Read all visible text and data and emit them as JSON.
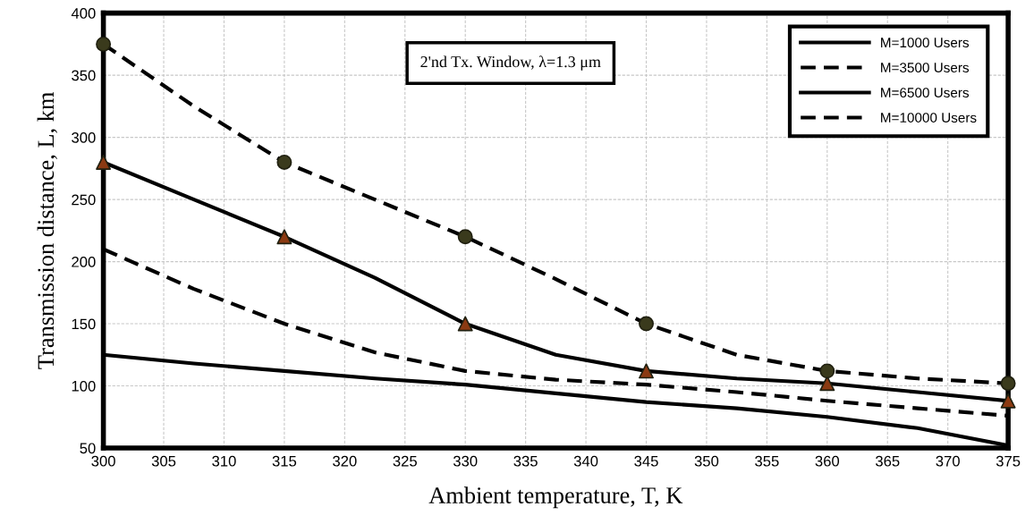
{
  "chart_data": {
    "type": "line",
    "xlabel": "Ambient temperature, T, K",
    "ylabel": "Transmission distance, L, km",
    "x": [
      300,
      307.5,
      315,
      322.5,
      330,
      337.5,
      345,
      352.5,
      360,
      367.5,
      375
    ],
    "series": [
      {
        "name": "M=1000 Users",
        "color": "#000000",
        "values": [
          125,
          118,
          112,
          106,
          101,
          94,
          87,
          82,
          75,
          66,
          52
        ],
        "line_style": "solid",
        "marker": "none"
      },
      {
        "name": "M=3500 Users",
        "color": "#000000",
        "values": [
          210,
          178,
          150,
          127,
          112,
          105,
          101,
          95,
          88,
          82,
          76
        ],
        "line_style": "dashed",
        "marker": "none"
      },
      {
        "name": "M=6500 Users",
        "color": "#000000",
        "values": [
          280,
          250,
          220,
          187,
          150,
          125,
          112,
          106,
          102,
          95,
          88
        ],
        "line_style": "solid",
        "marker": "triangle",
        "colors": [
          "#8b3a12",
          null,
          "#8b3a12",
          null,
          "#8b3a12",
          null,
          "#8b3a12",
          null,
          "#8b3a12",
          null,
          "#8b3a12"
        ]
      },
      {
        "name": "M=10000 Users",
        "color": "#000000",
        "values": [
          375,
          325,
          280,
          250,
          220,
          186,
          150,
          125,
          112,
          106,
          102
        ],
        "line_style": "dashed",
        "marker": "circle",
        "colors": [
          "#3a3a1c",
          null,
          "#3a3a1c",
          null,
          "#3a3a1c",
          null,
          "#3a3a1c",
          null,
          "#3a3a1c",
          null,
          "#3a3a1c"
        ]
      }
    ],
    "xlim": [
      300,
      375
    ],
    "xticks": [
      300,
      305,
      310,
      315,
      320,
      325,
      330,
      335,
      340,
      345,
      350,
      355,
      360,
      365,
      370,
      375
    ],
    "ylim": [
      50,
      400
    ],
    "yticks": [
      50,
      100,
      150,
      200,
      250,
      300,
      350,
      400
    ],
    "grid": true,
    "legend": "top right",
    "annotations": [
      "2'nd Tx. Window, λ=1.3 μm"
    ]
  }
}
